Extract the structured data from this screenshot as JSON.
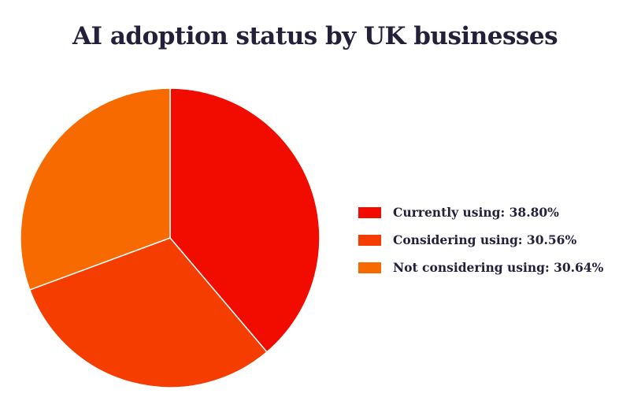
{
  "chart_data": {
    "type": "pie",
    "title": "AI adoption status by UK businesses",
    "slices": [
      {
        "label": "Currently using: 38.80%",
        "name": "Currently using",
        "value": 38.8,
        "color": "#f20c00"
      },
      {
        "label": "Considering using: 30.56%",
        "name": "Considering using",
        "value": 30.56,
        "color": "#f53d00"
      },
      {
        "label": "Not considering using: 30.64%",
        "name": "Not considering using",
        "value": 30.64,
        "color": "#f76a00"
      }
    ],
    "start_angle_deg": 0,
    "direction": "clockwise",
    "legend_position": "right"
  }
}
